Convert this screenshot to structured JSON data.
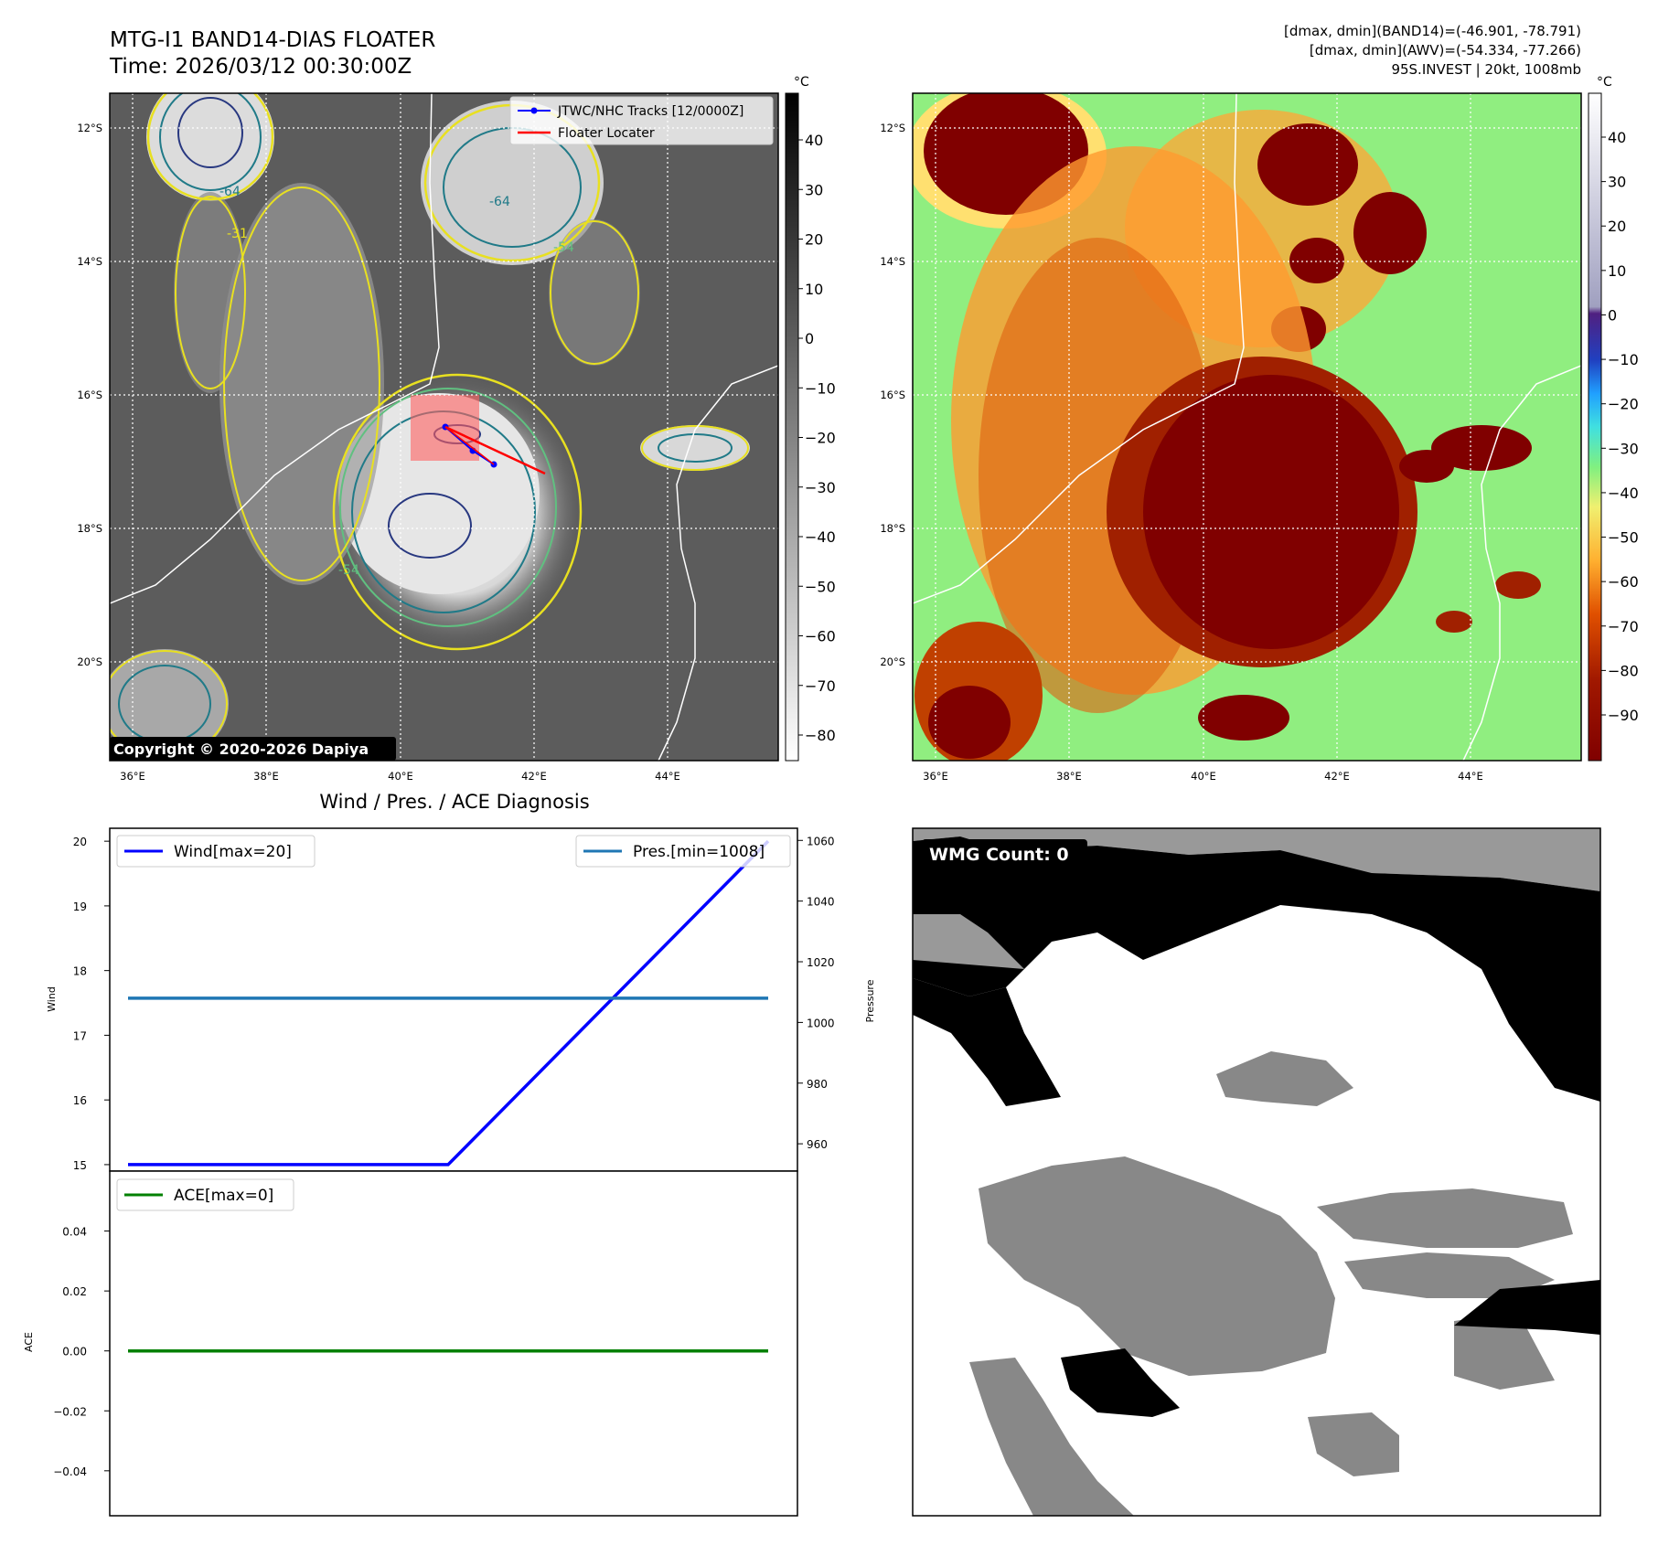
{
  "header": {
    "title_line1": "MTG-I1 BAND14-DIAS FLOATER",
    "title_line2": "Time: 2026/03/12 00:30:00Z",
    "info_line1": "[dmax, dmin](BAND14)=(-46.901, -78.791)",
    "info_line2": "[dmax, dmin](AWV)=(-54.334, -77.266)",
    "info_line3": "95S.INVEST | 20kt, 1008mb"
  },
  "copyright": "Copyright © 2020-2026 Dapiya",
  "map": {
    "lat_ticks": [
      "12°S",
      "14°S",
      "16°S",
      "18°S",
      "20°S"
    ],
    "lon_ticks": [
      "36°E",
      "38°E",
      "40°E",
      "42°E",
      "44°E"
    ],
    "legend": {
      "tracks": "JTWC/NHC Tracks [12/0000Z]",
      "locater": "Floater Locater"
    },
    "contour_labels": [
      "-31",
      "-54",
      "-64"
    ],
    "track_color": "#0000ff",
    "locater_color": "#ff0000"
  },
  "colorbar_gray": {
    "unit": "°C",
    "ticks": [
      "40",
      "30",
      "20",
      "10",
      "0",
      "−10",
      "−20",
      "−30",
      "−40",
      "−50",
      "−60",
      "−70",
      "−80"
    ]
  },
  "colorbar_awv": {
    "unit": "°C",
    "ticks": [
      "40",
      "30",
      "20",
      "10",
      "0",
      "−10",
      "−20",
      "−30",
      "−40",
      "−50",
      "−60",
      "−70",
      "−80",
      "−90"
    ]
  },
  "wmg": {
    "label": "WMG Count: 0"
  },
  "chart_data": [
    {
      "type": "line",
      "title": "Wind / Pres. / ACE Diagnosis",
      "ylabel": "Wind",
      "y2label": "Pressure",
      "ylim": [
        14.9,
        20.2
      ],
      "y2lim": [
        951,
        1064
      ],
      "yticks": [
        "20",
        "19",
        "18",
        "17",
        "16",
        "15"
      ],
      "y2ticks": [
        "1060",
        "1040",
        "1020",
        "1000",
        "980",
        "960"
      ],
      "legend_placement": [
        "upper-left",
        "upper-right"
      ],
      "series": [
        {
          "name": "Wind[max=20]",
          "axis": "left",
          "color": "#0000ff",
          "x": [
            0,
            1,
            2
          ],
          "values": [
            15,
            15,
            20
          ]
        },
        {
          "name": "Pres.[min=1008]",
          "axis": "right",
          "color": "#1f77b4",
          "x": [
            0,
            1,
            2
          ],
          "values": [
            1008,
            1008,
            1008
          ]
        }
      ]
    },
    {
      "type": "line",
      "ylabel": "ACE",
      "ylim": [
        -0.055,
        0.06
      ],
      "yticks": [
        "0.04",
        "0.02",
        "0.00",
        "−0.02",
        "−0.04"
      ],
      "legend_placement": "upper-left",
      "series": [
        {
          "name": "ACE[max=0]",
          "color": "#008000",
          "x": [
            0,
            2
          ],
          "values": [
            0,
            0
          ]
        }
      ]
    }
  ]
}
